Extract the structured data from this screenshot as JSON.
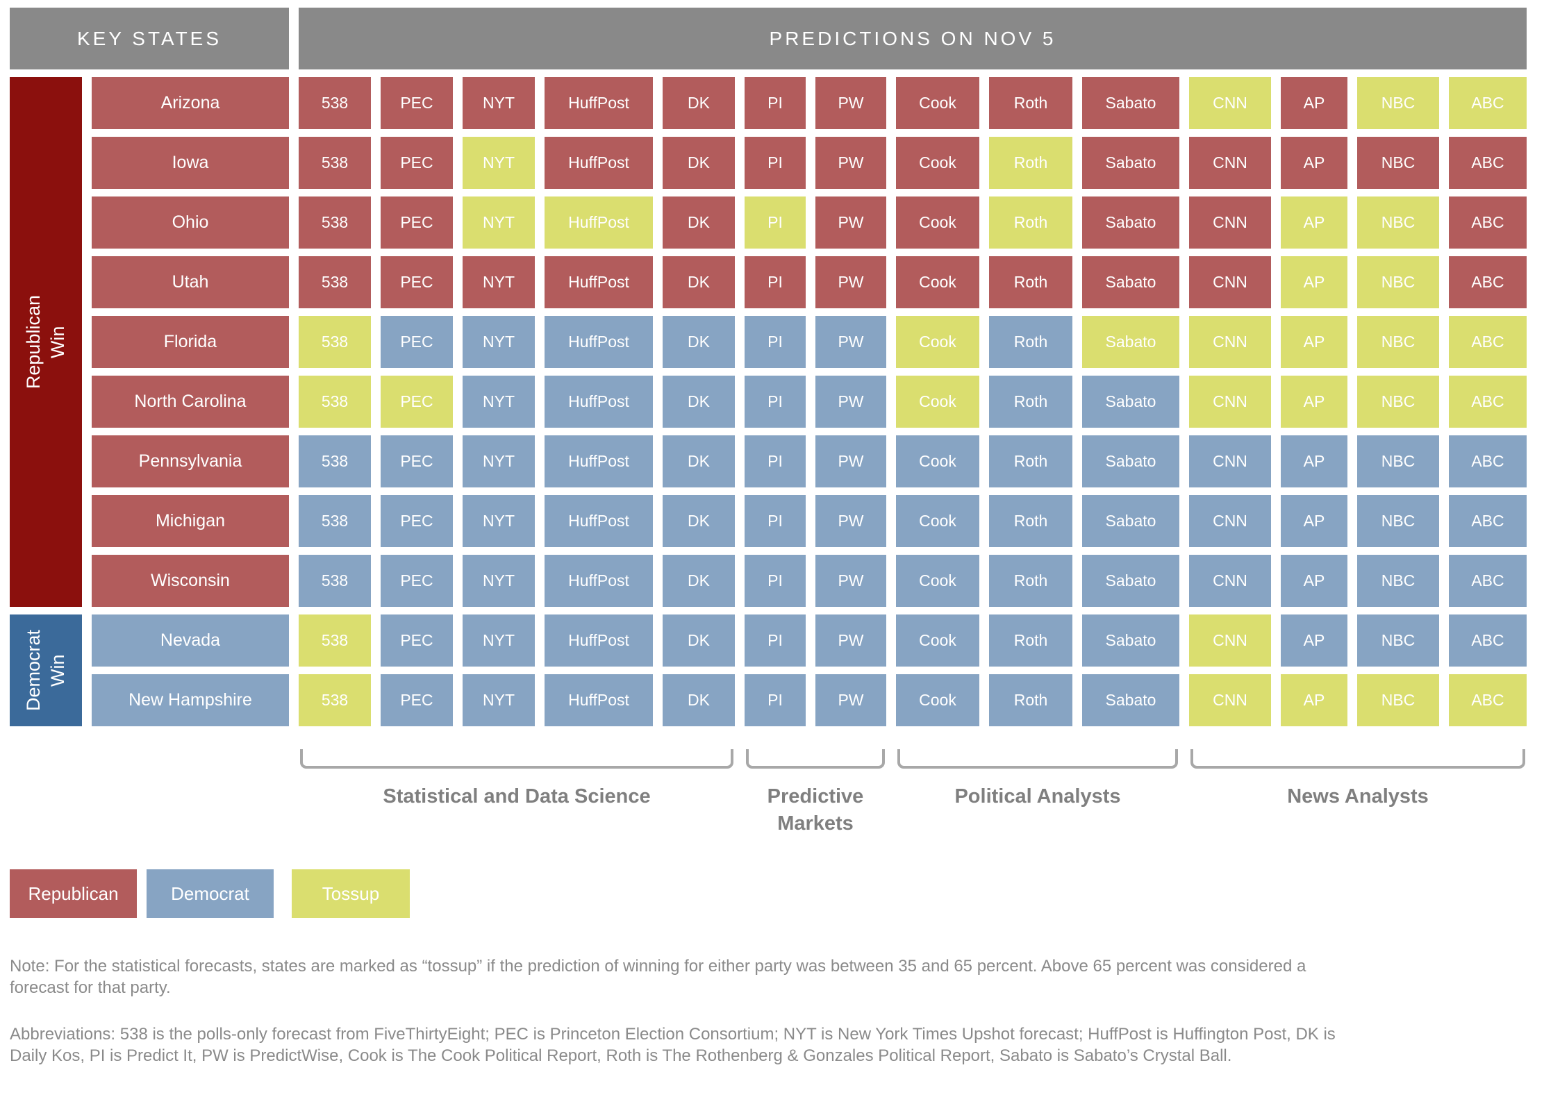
{
  "header": {
    "key_states": "KEY STATES",
    "predictions": "PREDICTIONS ON NOV 5"
  },
  "legend": [
    "Republican",
    "Democrat",
    "Tossup"
  ],
  "notes": [
    "Note: For the statistical forecasts, states are marked as “tossup” if the prediction of winning for either party was between 35 and 65 percent. Above 65 percent was considered a forecast for that party.",
    "Abbreviations: 538 is the polls-only forecast from FiveThirtyEight; PEC is Princeton Election Consortium; NYT is New York Times Upshot forecast; HuffPost is Huffington Post, DK is Daily Kos, PI is Predict It, PW is PredictWise, Cook is The Cook Political Report, Roth is The Rothenberg & Gonzales Political Report, Sabato is Sabato’s Crystal Ball."
  ],
  "colors": {
    "republican": "#b25c5c",
    "democrat": "#87a4c3",
    "tossup": "#dade6f",
    "republican_dark": "#8b100d",
    "democrat_dark": "#3b6a9a",
    "header_gray": "#898989",
    "label_gray": "#7f7f7f",
    "bracket_gray": "#a8a8a8",
    "note_gray": "#8a8a8a"
  },
  "chart_data": {
    "type": "heatmap",
    "title": "PREDICTIONS ON NOV 5",
    "legend": [
      "Republican",
      "Democrat",
      "Tossup"
    ],
    "columns": [
      "538",
      "PEC",
      "NYT",
      "HuffPost",
      "DK",
      "PI",
      "PW",
      "Cook",
      "Roth",
      "Sabato",
      "CNN",
      "AP",
      "NBC",
      "ABC"
    ],
    "column_groups": [
      {
        "label": "Statistical and Data Science",
        "columns": [
          "538",
          "PEC",
          "NYT",
          "HuffPost",
          "DK"
        ]
      },
      {
        "label": "Predictive Markets",
        "columns": [
          "PI",
          "PW"
        ]
      },
      {
        "label": "Political Analysts",
        "columns": [
          "Cook",
          "Roth",
          "Sabato"
        ]
      },
      {
        "label": "News Analysts",
        "columns": [
          "CNN",
          "AP",
          "NBC",
          "ABC"
        ]
      }
    ],
    "rows": [
      {
        "state": "Arizona",
        "actual_result": "Republican Win",
        "predictions": [
          "Republican",
          "Republican",
          "Republican",
          "Republican",
          "Republican",
          "Republican",
          "Republican",
          "Republican",
          "Republican",
          "Republican",
          "Tossup",
          "Republican",
          "Tossup",
          "Tossup"
        ]
      },
      {
        "state": "Iowa",
        "actual_result": "Republican Win",
        "predictions": [
          "Republican",
          "Republican",
          "Tossup",
          "Republican",
          "Republican",
          "Republican",
          "Republican",
          "Republican",
          "Tossup",
          "Republican",
          "Republican",
          "Republican",
          "Republican",
          "Republican"
        ]
      },
      {
        "state": "Ohio",
        "actual_result": "Republican Win",
        "predictions": [
          "Republican",
          "Republican",
          "Tossup",
          "Tossup",
          "Republican",
          "Tossup",
          "Republican",
          "Republican",
          "Tossup",
          "Republican",
          "Republican",
          "Tossup",
          "Tossup",
          "Republican"
        ]
      },
      {
        "state": "Utah",
        "actual_result": "Republican Win",
        "predictions": [
          "Republican",
          "Republican",
          "Republican",
          "Republican",
          "Republican",
          "Republican",
          "Republican",
          "Republican",
          "Republican",
          "Republican",
          "Republican",
          "Tossup",
          "Tossup",
          "Republican"
        ]
      },
      {
        "state": "Florida",
        "actual_result": "Republican Win",
        "predictions": [
          "Tossup",
          "Democrat",
          "Democrat",
          "Democrat",
          "Democrat",
          "Democrat",
          "Democrat",
          "Tossup",
          "Democrat",
          "Tossup",
          "Tossup",
          "Tossup",
          "Tossup",
          "Tossup"
        ]
      },
      {
        "state": "North Carolina",
        "actual_result": "Republican Win",
        "predictions": [
          "Tossup",
          "Tossup",
          "Democrat",
          "Democrat",
          "Democrat",
          "Democrat",
          "Democrat",
          "Tossup",
          "Democrat",
          "Democrat",
          "Tossup",
          "Tossup",
          "Tossup",
          "Tossup"
        ]
      },
      {
        "state": "Pennsylvania",
        "actual_result": "Republican Win",
        "predictions": [
          "Democrat",
          "Democrat",
          "Democrat",
          "Democrat",
          "Democrat",
          "Democrat",
          "Democrat",
          "Democrat",
          "Democrat",
          "Democrat",
          "Democrat",
          "Democrat",
          "Democrat",
          "Democrat"
        ]
      },
      {
        "state": "Michigan",
        "actual_result": "Republican Win",
        "predictions": [
          "Democrat",
          "Democrat",
          "Democrat",
          "Democrat",
          "Democrat",
          "Democrat",
          "Democrat",
          "Democrat",
          "Democrat",
          "Democrat",
          "Democrat",
          "Democrat",
          "Democrat",
          "Democrat"
        ]
      },
      {
        "state": "Wisconsin",
        "actual_result": "Republican Win",
        "predictions": [
          "Democrat",
          "Democrat",
          "Democrat",
          "Democrat",
          "Democrat",
          "Democrat",
          "Democrat",
          "Democrat",
          "Democrat",
          "Democrat",
          "Democrat",
          "Democrat",
          "Democrat",
          "Democrat"
        ]
      },
      {
        "state": "Nevada",
        "actual_result": "Democrat Win",
        "predictions": [
          "Tossup",
          "Democrat",
          "Democrat",
          "Democrat",
          "Democrat",
          "Democrat",
          "Democrat",
          "Democrat",
          "Democrat",
          "Democrat",
          "Tossup",
          "Democrat",
          "Democrat",
          "Democrat"
        ]
      },
      {
        "state": "New Hampshire",
        "actual_result": "Democrat Win",
        "predictions": [
          "Tossup",
          "Democrat",
          "Democrat",
          "Democrat",
          "Democrat",
          "Democrat",
          "Democrat",
          "Democrat",
          "Democrat",
          "Democrat",
          "Tossup",
          "Tossup",
          "Tossup",
          "Tossup"
        ]
      }
    ]
  }
}
